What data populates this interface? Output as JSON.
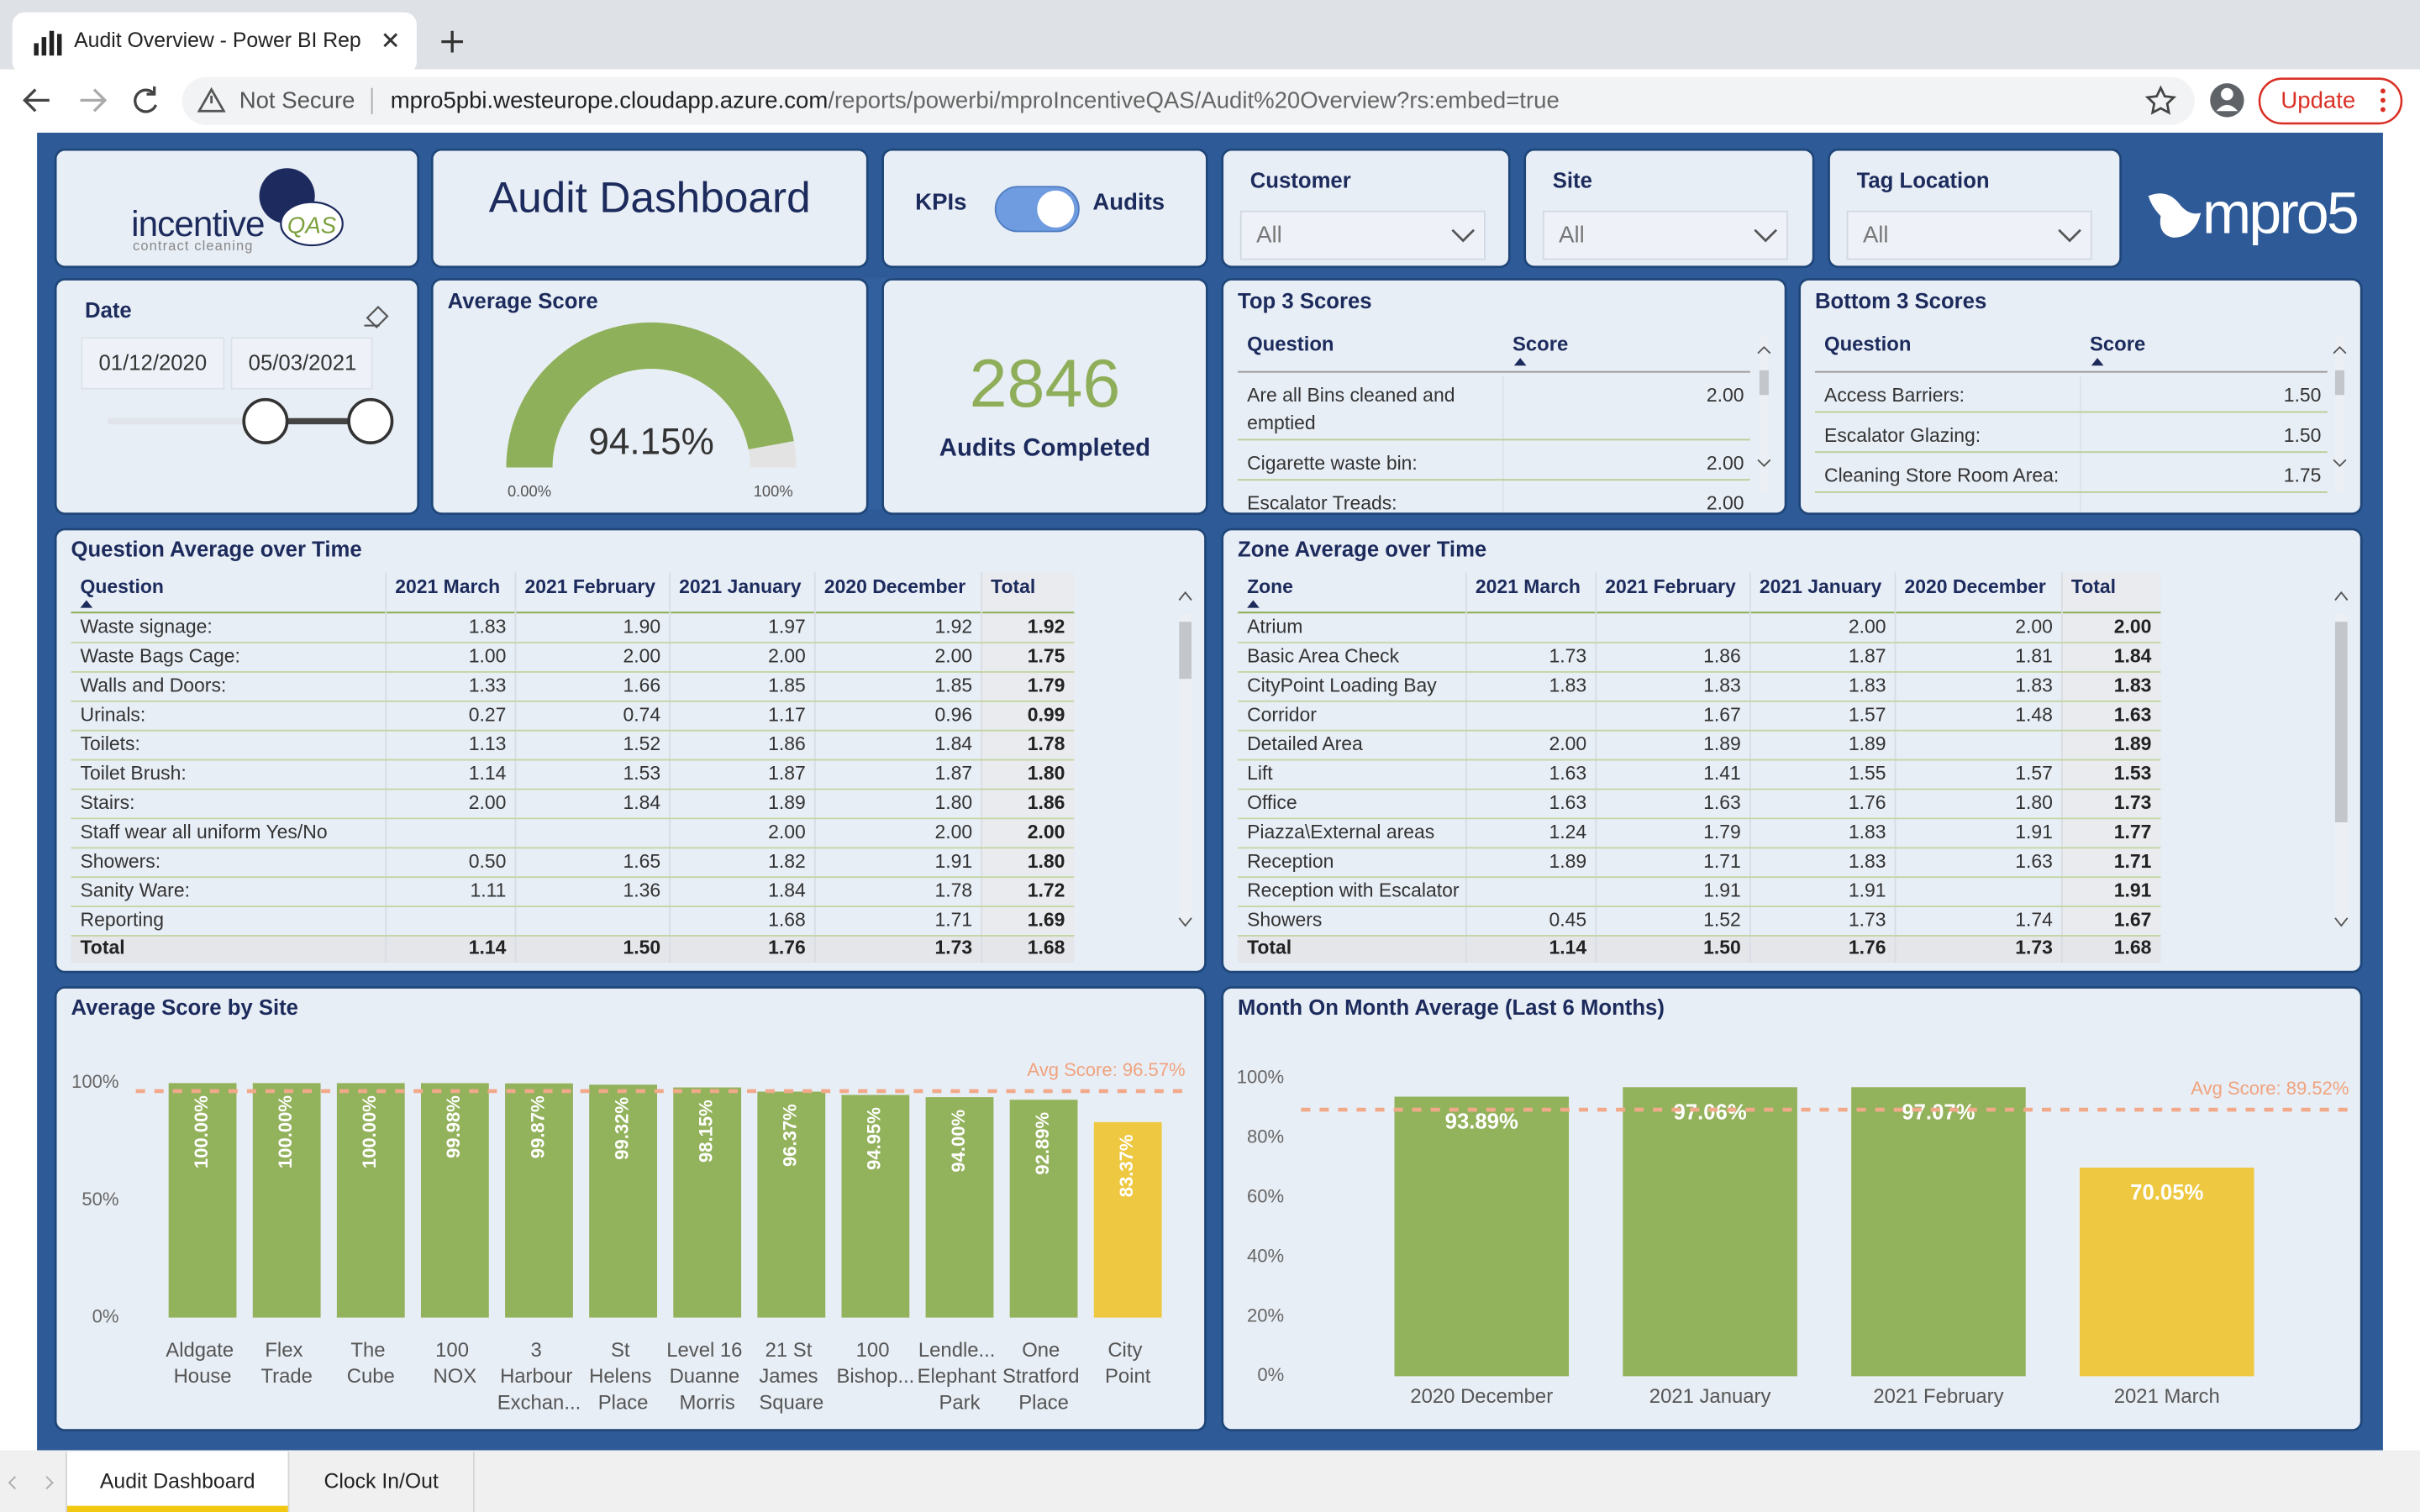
{
  "browser": {
    "tab_title": "Audit Overview - Power BI Rep",
    "security": "Not Secure",
    "url_host": "mpro5pbi.westeurope.cloudapp.azure.com",
    "url_path": "/reports/powerbi/mproIncentiveQAS/Audit%20Overview?rs:embed=true",
    "update": "Update"
  },
  "logo": {
    "brand": "incentive",
    "badge": "QAS",
    "tagline": "contract cleaning",
    "partner": "mpro5"
  },
  "header": {
    "title": "Audit Dashboard",
    "toggle_left": "KPIs",
    "toggle_right": "Audits"
  },
  "slicers": [
    {
      "label": "Customer",
      "value": "All"
    },
    {
      "label": "Site",
      "value": "All"
    },
    {
      "label": "Tag Location",
      "value": "All"
    }
  ],
  "date_slicer": {
    "label": "Date",
    "start": "01/12/2020",
    "end": "05/03/2021"
  },
  "gauge": {
    "title": "Average Score",
    "value": 94.15,
    "value_label": "94.15%",
    "min": 0,
    "max": 100,
    "min_label": "0.00%",
    "max_label": "100%"
  },
  "kpi": {
    "value": 2846,
    "label": "Audits Completed"
  },
  "top_scores": {
    "title": "Top 3 Scores",
    "columns": [
      "Question",
      "Score"
    ],
    "rows": [
      [
        "Are all Bins cleaned and emptied",
        "2.00"
      ],
      [
        "Cigarette waste bin:",
        "2.00"
      ],
      [
        "Escalator Treads:",
        "2.00"
      ]
    ]
  },
  "bottom_scores": {
    "title": "Bottom 3 Scores",
    "columns": [
      "Question",
      "Score"
    ],
    "rows": [
      [
        "Access Barriers:",
        "1.50"
      ],
      [
        "Escalator Glazing:",
        "1.50"
      ],
      [
        "Cleaning Store Room Area:",
        "1.75"
      ]
    ]
  },
  "question_table": {
    "title": "Question Average over Time",
    "columns": [
      "Question",
      "2021 March",
      "2021 February",
      "2021 January",
      "2020 December",
      "Total"
    ],
    "rows": [
      [
        "Waste signage:",
        "1.83",
        "1.90",
        "1.97",
        "1.92",
        "1.92"
      ],
      [
        "Waste Bags Cage:",
        "1.00",
        "2.00",
        "2.00",
        "2.00",
        "1.75"
      ],
      [
        "Walls and Doors:",
        "1.33",
        "1.66",
        "1.85",
        "1.85",
        "1.79"
      ],
      [
        "Urinals:",
        "0.27",
        "0.74",
        "1.17",
        "0.96",
        "0.99"
      ],
      [
        "Toilets:",
        "1.13",
        "1.52",
        "1.86",
        "1.84",
        "1.78"
      ],
      [
        "Toilet Brush:",
        "1.14",
        "1.53",
        "1.87",
        "1.87",
        "1.80"
      ],
      [
        "Stairs:",
        "2.00",
        "1.84",
        "1.89",
        "1.80",
        "1.86"
      ],
      [
        "Staff wear all uniform Yes/No",
        null,
        null,
        "2.00",
        "2.00",
        "2.00"
      ],
      [
        "Showers:",
        "0.50",
        "1.65",
        "1.82",
        "1.91",
        "1.80"
      ],
      [
        "Sanity Ware:",
        "1.11",
        "1.36",
        "1.84",
        "1.78",
        "1.72"
      ],
      [
        "Reporting",
        null,
        null,
        "1.68",
        "1.71",
        "1.69"
      ]
    ],
    "total": [
      "Total",
      "1.14",
      "1.50",
      "1.76",
      "1.73",
      "1.68"
    ]
  },
  "zone_table": {
    "title": "Zone Average over Time",
    "columns": [
      "Zone",
      "2021 March",
      "2021 February",
      "2021 January",
      "2020 December",
      "Total"
    ],
    "rows": [
      [
        "Atrium",
        null,
        null,
        "2.00",
        "2.00",
        "2.00"
      ],
      [
        "Basic Area Check",
        "1.73",
        "1.86",
        "1.87",
        "1.81",
        "1.84"
      ],
      [
        "CityPoint Loading Bay",
        "1.83",
        "1.83",
        "1.83",
        "1.83",
        "1.83"
      ],
      [
        "Corridor",
        null,
        "1.67",
        "1.57",
        "1.48",
        "1.63"
      ],
      [
        "Detailed Area",
        "2.00",
        "1.89",
        "1.89",
        null,
        "1.89"
      ],
      [
        "Lift",
        "1.63",
        "1.41",
        "1.55",
        "1.57",
        "1.53"
      ],
      [
        "Office",
        "1.63",
        "1.63",
        "1.76",
        "1.80",
        "1.73"
      ],
      [
        "Piazza\\External areas",
        "1.24",
        "1.79",
        "1.83",
        "1.91",
        "1.77"
      ],
      [
        "Reception",
        "1.89",
        "1.71",
        "1.83",
        "1.63",
        "1.71"
      ],
      [
        "Reception with Escalator",
        null,
        "1.91",
        "1.91",
        null,
        "1.91"
      ],
      [
        "Showers",
        "0.45",
        "1.52",
        "1.73",
        "1.74",
        "1.67"
      ]
    ],
    "total": [
      "Total",
      "1.14",
      "1.50",
      "1.76",
      "1.73",
      "1.68"
    ]
  },
  "chart_data": [
    {
      "type": "bar",
      "title": "Average Score by Site",
      "categories": [
        "Aldgate House",
        "Flex Trade",
        "The Cube",
        "100 NOX",
        "3 Harbour Exchan...",
        "St Helens Place",
        "Level 16 Duanne Morris",
        "21 St James Square",
        "100 Bishop...",
        "Lendle... Elephant Park",
        "One Stratford Place",
        "City Point"
      ],
      "values": [
        100,
        100,
        100,
        99.98,
        99.87,
        99.32,
        98.15,
        96.37,
        94.95,
        94.0,
        92.89,
        83.37
      ],
      "value_labels": [
        "100.00%",
        "100.00%",
        "100.00%",
        "99.98%",
        "99.87%",
        "99.32%",
        "98.15%",
        "96.37%",
        "94.95%",
        "94.00%",
        "92.89%",
        "83.37%"
      ],
      "colors": [
        "#93b25c",
        "#93b25c",
        "#93b25c",
        "#93b25c",
        "#93b25c",
        "#93b25c",
        "#93b25c",
        "#93b25c",
        "#93b25c",
        "#93b25c",
        "#93b25c",
        "#eec841"
      ],
      "ylim": [
        0,
        100
      ],
      "yticks": [
        {
          "value": 0,
          "label": "0%"
        },
        {
          "value": 50,
          "label": "50%"
        },
        {
          "value": 100,
          "label": "100%"
        }
      ],
      "reference": {
        "value": 96.57,
        "label": "Avg Score: 96.57%"
      }
    },
    {
      "type": "bar",
      "title": "Month On Month Average (Last 6 Months)",
      "categories": [
        "2020 December",
        "2021 January",
        "2021 February",
        "2021 March"
      ],
      "values": [
        93.89,
        97.06,
        97.07,
        70.05
      ],
      "value_labels": [
        "93.89%",
        "97.06%",
        "97.07%",
        "70.05%"
      ],
      "colors": [
        "#93b25c",
        "#93b25c",
        "#93b25c",
        "#eec841"
      ],
      "ylim": [
        0,
        100
      ],
      "yticks": [
        {
          "value": 0,
          "label": "0%"
        },
        {
          "value": 20,
          "label": "20%"
        },
        {
          "value": 40,
          "label": "40%"
        },
        {
          "value": 60,
          "label": "60%"
        },
        {
          "value": 80,
          "label": "80%"
        },
        {
          "value": 100,
          "label": "100%"
        }
      ],
      "reference": {
        "value": 89.52,
        "label": "Avg Score: 89.52%"
      }
    }
  ],
  "pages": [
    "Audit Dashboard",
    "Clock In/Out"
  ]
}
